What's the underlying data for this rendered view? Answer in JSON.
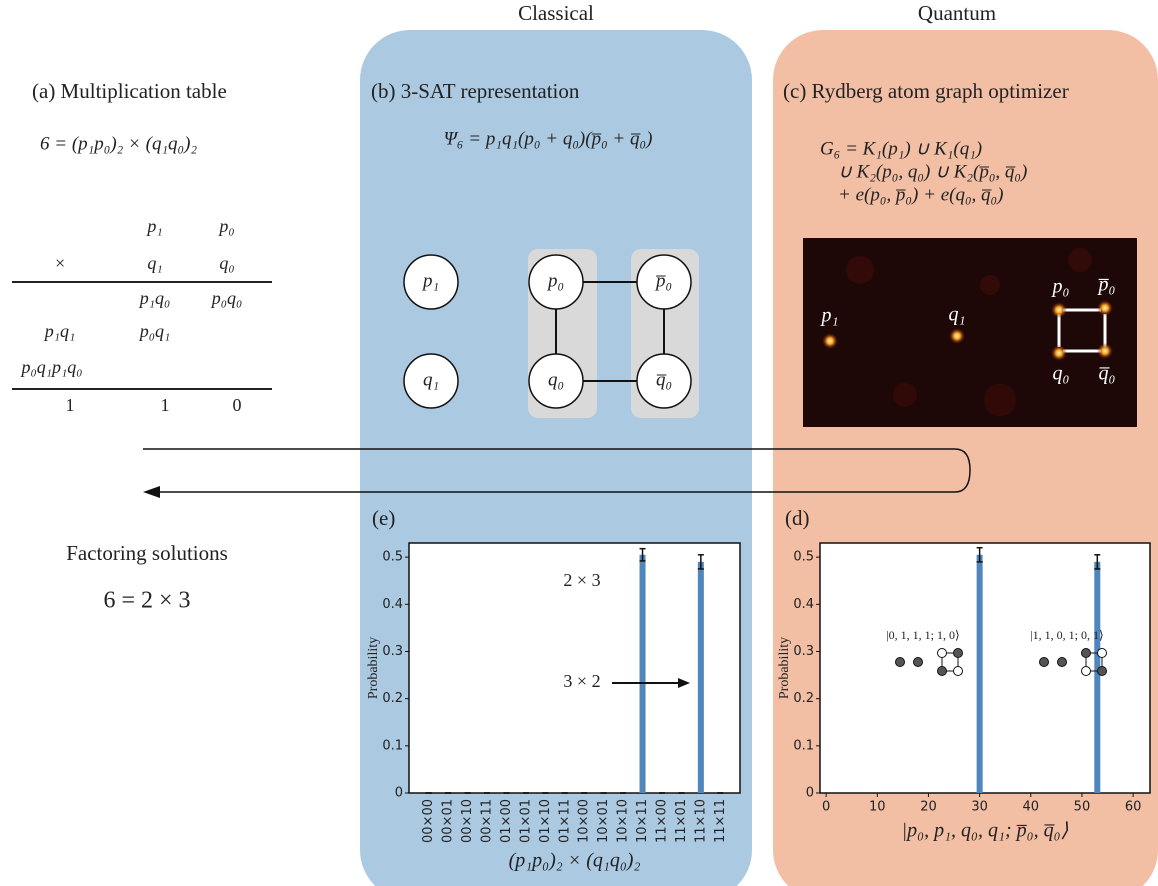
{
  "headers": {
    "classical": "Classical",
    "quantum": "Quantum"
  },
  "panel_a": {
    "title": "(a) Multiplication table",
    "equation": "6 = (p₁p₀)₂ × (q₁q₀)₂",
    "rows": [
      [
        null,
        "p₁",
        "p₀"
      ],
      [
        "×",
        "q₁",
        "q₀"
      ],
      [
        null,
        "p₁q₀",
        "p₀q₀"
      ],
      [
        "p₁q₁",
        "p₀q₁",
        null
      ],
      [
        "p₀q₁p₁q₀",
        null,
        null
      ],
      [
        "1",
        "1",
        "0"
      ]
    ]
  },
  "factoring": {
    "title": "Factoring solutions",
    "equation": "6 = 2 × 3"
  },
  "panel_b": {
    "title": "(b) 3-SAT representation",
    "equation": "Ψ₆ = p₁q₁(p₀ + q₀)(p̅₀ + q̅₀)",
    "nodes": [
      "p₁",
      "q₁",
      "p₀",
      "q₀",
      "p̅₀",
      "q̅₀"
    ]
  },
  "panel_c": {
    "title": "(c) Rydberg atom graph optimizer",
    "equation": [
      "G₆ = K₁(p₁) ∪ K₁(q₁)",
      "∪ K₂(p₀, q₀) ∪ K₂(p̅₀, q̅₀)",
      "+ e(p₀, p̅₀) + e(q₀, q̅₀)"
    ],
    "atoms": [
      "p₁",
      "q₁",
      "p₀",
      "p̅₀",
      "q₀",
      "q̅₀"
    ]
  },
  "chart_data": [
    {
      "type": "bar",
      "panel": "(e)",
      "xlabel": "(p₁p₀)₂ × (q₁q₀)₂",
      "ylabel": "Probability",
      "categories": [
        "00×00",
        "00×01",
        "00×10",
        "00×11",
        "01×00",
        "01×01",
        "01×10",
        "01×11",
        "10×00",
        "10×01",
        "10×10",
        "10×11",
        "11×00",
        "11×01",
        "11×10",
        "11×11"
      ],
      "series": [
        {
          "color": "#4f86bb",
          "values": [
            0,
            0,
            0,
            0,
            0,
            0,
            0,
            0,
            0,
            0,
            0,
            0.505,
            0,
            0,
            0.49,
            0
          ],
          "errors": [
            0,
            0,
            0,
            0,
            0,
            0,
            0,
            0,
            0,
            0,
            0,
            0.013,
            0,
            0,
            0.015,
            0
          ]
        }
      ],
      "ylim": [
        0,
        0.53
      ],
      "yticks": [
        0,
        0.1,
        0.2,
        0.3,
        0.4,
        0.5
      ],
      "annotations": [
        "2 × 3",
        "3 × 2"
      ]
    },
    {
      "type": "bar",
      "panel": "(d)",
      "xlabel": "|p₀, p₁, q₀, q₁; p̅₀, q̅₀⟩",
      "ylabel": "Probability",
      "x": [
        30,
        53
      ],
      "series": [
        {
          "color": "#4f86bb",
          "values": [
            0.505,
            0.49
          ],
          "errors": [
            0.015,
            0.015
          ]
        }
      ],
      "xlim": [
        -1.2,
        63.3
      ],
      "xticks": [
        0,
        10,
        20,
        30,
        40,
        50,
        60
      ],
      "ylim": [
        0,
        0.53
      ],
      "yticks": [
        0,
        0.1,
        0.2,
        0.3,
        0.4,
        0.5
      ],
      "annotations": [
        "|0, 1, 1, 1; 1, 0⟩",
        "|1, 1, 0, 1; 0, 1⟩"
      ]
    }
  ]
}
